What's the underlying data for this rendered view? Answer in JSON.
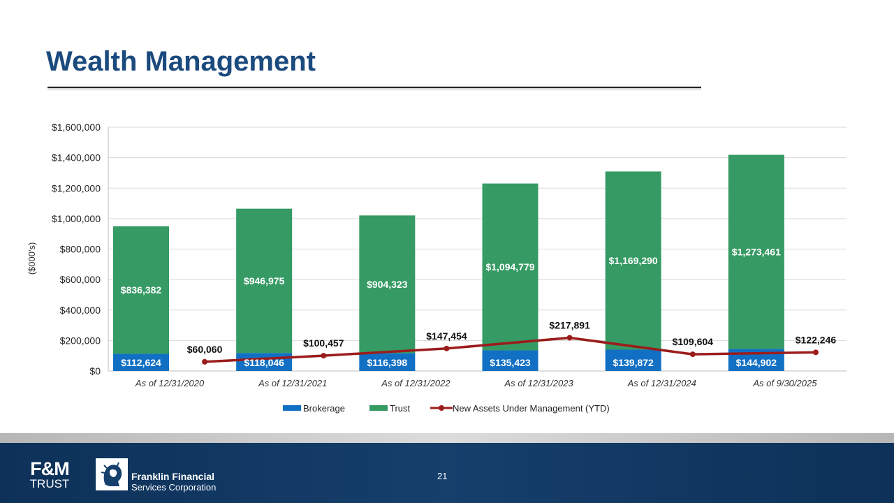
{
  "slide": {
    "title": "Wealth Management",
    "page_number": "21"
  },
  "footer": {
    "fm_logo_top": "F&M",
    "fm_logo_bottom": "TRUST",
    "company_line1": "Franklin Financial",
    "company_line2": "Services Corporation"
  },
  "colors": {
    "title": "#1b4a7e",
    "brokerage": "#1170c4",
    "trust": "#369a64",
    "line": "#9b1c1c",
    "grid": "#d9d9d9"
  },
  "chart_data": {
    "type": "bar",
    "stacked": true,
    "ylabel": "($000's)",
    "ylim": [
      0,
      1600000
    ],
    "yticks": [
      0,
      200000,
      400000,
      600000,
      800000,
      1000000,
      1200000,
      1400000,
      1600000
    ],
    "ytick_labels": [
      "$0",
      "$200,000",
      "$400,000",
      "$600,000",
      "$800,000",
      "$1,000,000",
      "$1,200,000",
      "$1,400,000",
      "$1,600,000"
    ],
    "categories": [
      "As of 12/31/2020",
      "As of 12/31/2021",
      "As of 12/31/2022",
      "As of 12/31/2023",
      "As of 12/31/2024",
      "As of 9/30/2025"
    ],
    "series": [
      {
        "name": "Brokerage",
        "kind": "bar",
        "values": [
          112624,
          118046,
          116398,
          135423,
          139872,
          144902
        ],
        "labels": [
          "$112,624",
          "$118,046",
          "$116,398",
          "$135,423",
          "$139,872",
          "$144,902"
        ]
      },
      {
        "name": "Trust",
        "kind": "bar",
        "values": [
          836382,
          946975,
          904323,
          1094779,
          1169290,
          1273461
        ],
        "labels": [
          "$836,382",
          "$946,975",
          "$904,323",
          "$1,094,779",
          "$1,169,290",
          "$1,273,461"
        ]
      },
      {
        "name": "New Assets Under Management (YTD)",
        "kind": "line",
        "values": [
          60060,
          100457,
          147454,
          217891,
          109604,
          122246
        ],
        "labels": [
          "$60,060",
          "$100,457",
          "$147,454",
          "$217,891",
          "$109,604",
          "$122,246"
        ]
      }
    ],
    "legend_position": "bottom",
    "grid": true
  }
}
